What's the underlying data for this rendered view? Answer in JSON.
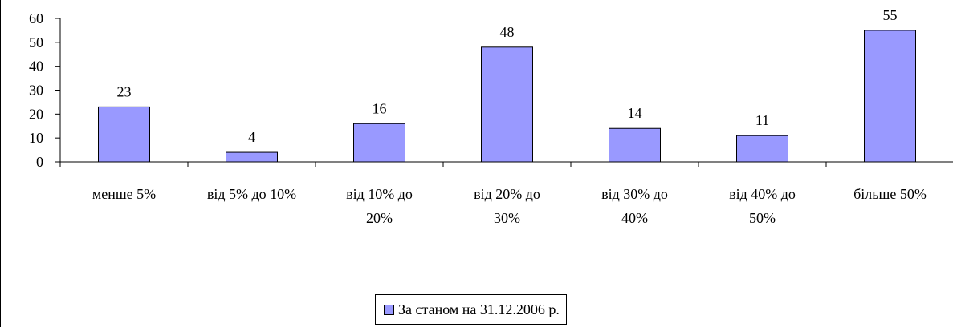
{
  "chart_data": {
    "type": "bar",
    "categories": [
      [
        "менше 5%"
      ],
      [
        "від 5% до 10%"
      ],
      [
        "від 10% до",
        "20%"
      ],
      [
        "від 20% до",
        "30%"
      ],
      [
        "від 30% до",
        "40%"
      ],
      [
        "від 40% до",
        "50%"
      ],
      [
        "більше 50%"
      ]
    ],
    "series": [
      {
        "name": "За станом на 31.12.2006 р.",
        "values": [
          23,
          4,
          16,
          48,
          14,
          11,
          55
        ],
        "color": "#9999ff"
      }
    ],
    "yticks": [
      "0",
      "10",
      "20",
      "30",
      "40",
      "50",
      "60"
    ],
    "ylim": [
      0,
      60
    ],
    "legend": "bottom-center",
    "grid": false,
    "data_labels": true
  }
}
